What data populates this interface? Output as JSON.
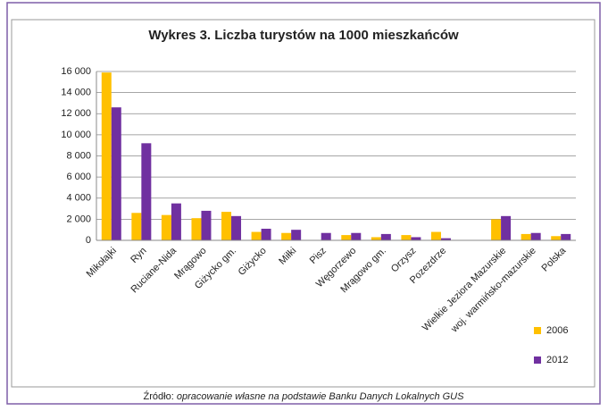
{
  "chart_data": {
    "type": "bar",
    "title": "Wykres 3. Liczba turystów na 1000 mieszkańców",
    "categories": [
      "Mikołajki",
      "Ryn",
      "Ruciane-Nida",
      "Mrągowo",
      "Giżycko gm.",
      "Giżycko",
      "Miłki",
      "Pisz",
      "Węgorzewo",
      "Mrągowo gm.",
      "Orzysz",
      "Pozezdrze",
      null,
      "Wielkie Jeziora Mazurskie",
      "woj. warmińsko-mazurskie",
      "Polska"
    ],
    "series": [
      {
        "name": "2006",
        "color": "#ffc000",
        "values": [
          15900,
          2600,
          2400,
          2100,
          2700,
          800,
          700,
          null,
          500,
          300,
          500,
          800,
          null,
          2000,
          600,
          400
        ]
      },
      {
        "name": "2012",
        "color": "#7030a0",
        "values": [
          12600,
          9200,
          3500,
          2800,
          2300,
          1100,
          1000,
          700,
          700,
          600,
          300,
          200,
          null,
          2300,
          700,
          600
        ]
      }
    ],
    "ylim": [
      0,
      16000
    ],
    "yticks": [
      0,
      {
        "value": 2000,
        "label": "2 000"
      },
      {
        "value": 4000,
        "label": "4 000"
      },
      {
        "value": 6000,
        "label": "6 000"
      },
      {
        "value": 8000,
        "label": "8 000"
      },
      {
        "value": 10000,
        "label": "10 000"
      },
      {
        "value": 12000,
        "label": "12 000"
      },
      {
        "value": 14000,
        "label": "14 000"
      },
      {
        "value": 16000,
        "label": "16 000"
      }
    ],
    "grid": true,
    "legend": "right",
    "source_prefix": "Źródło:",
    "source": "opracowanie własne na podstawie Banku Danych Lokalnych GUS"
  }
}
